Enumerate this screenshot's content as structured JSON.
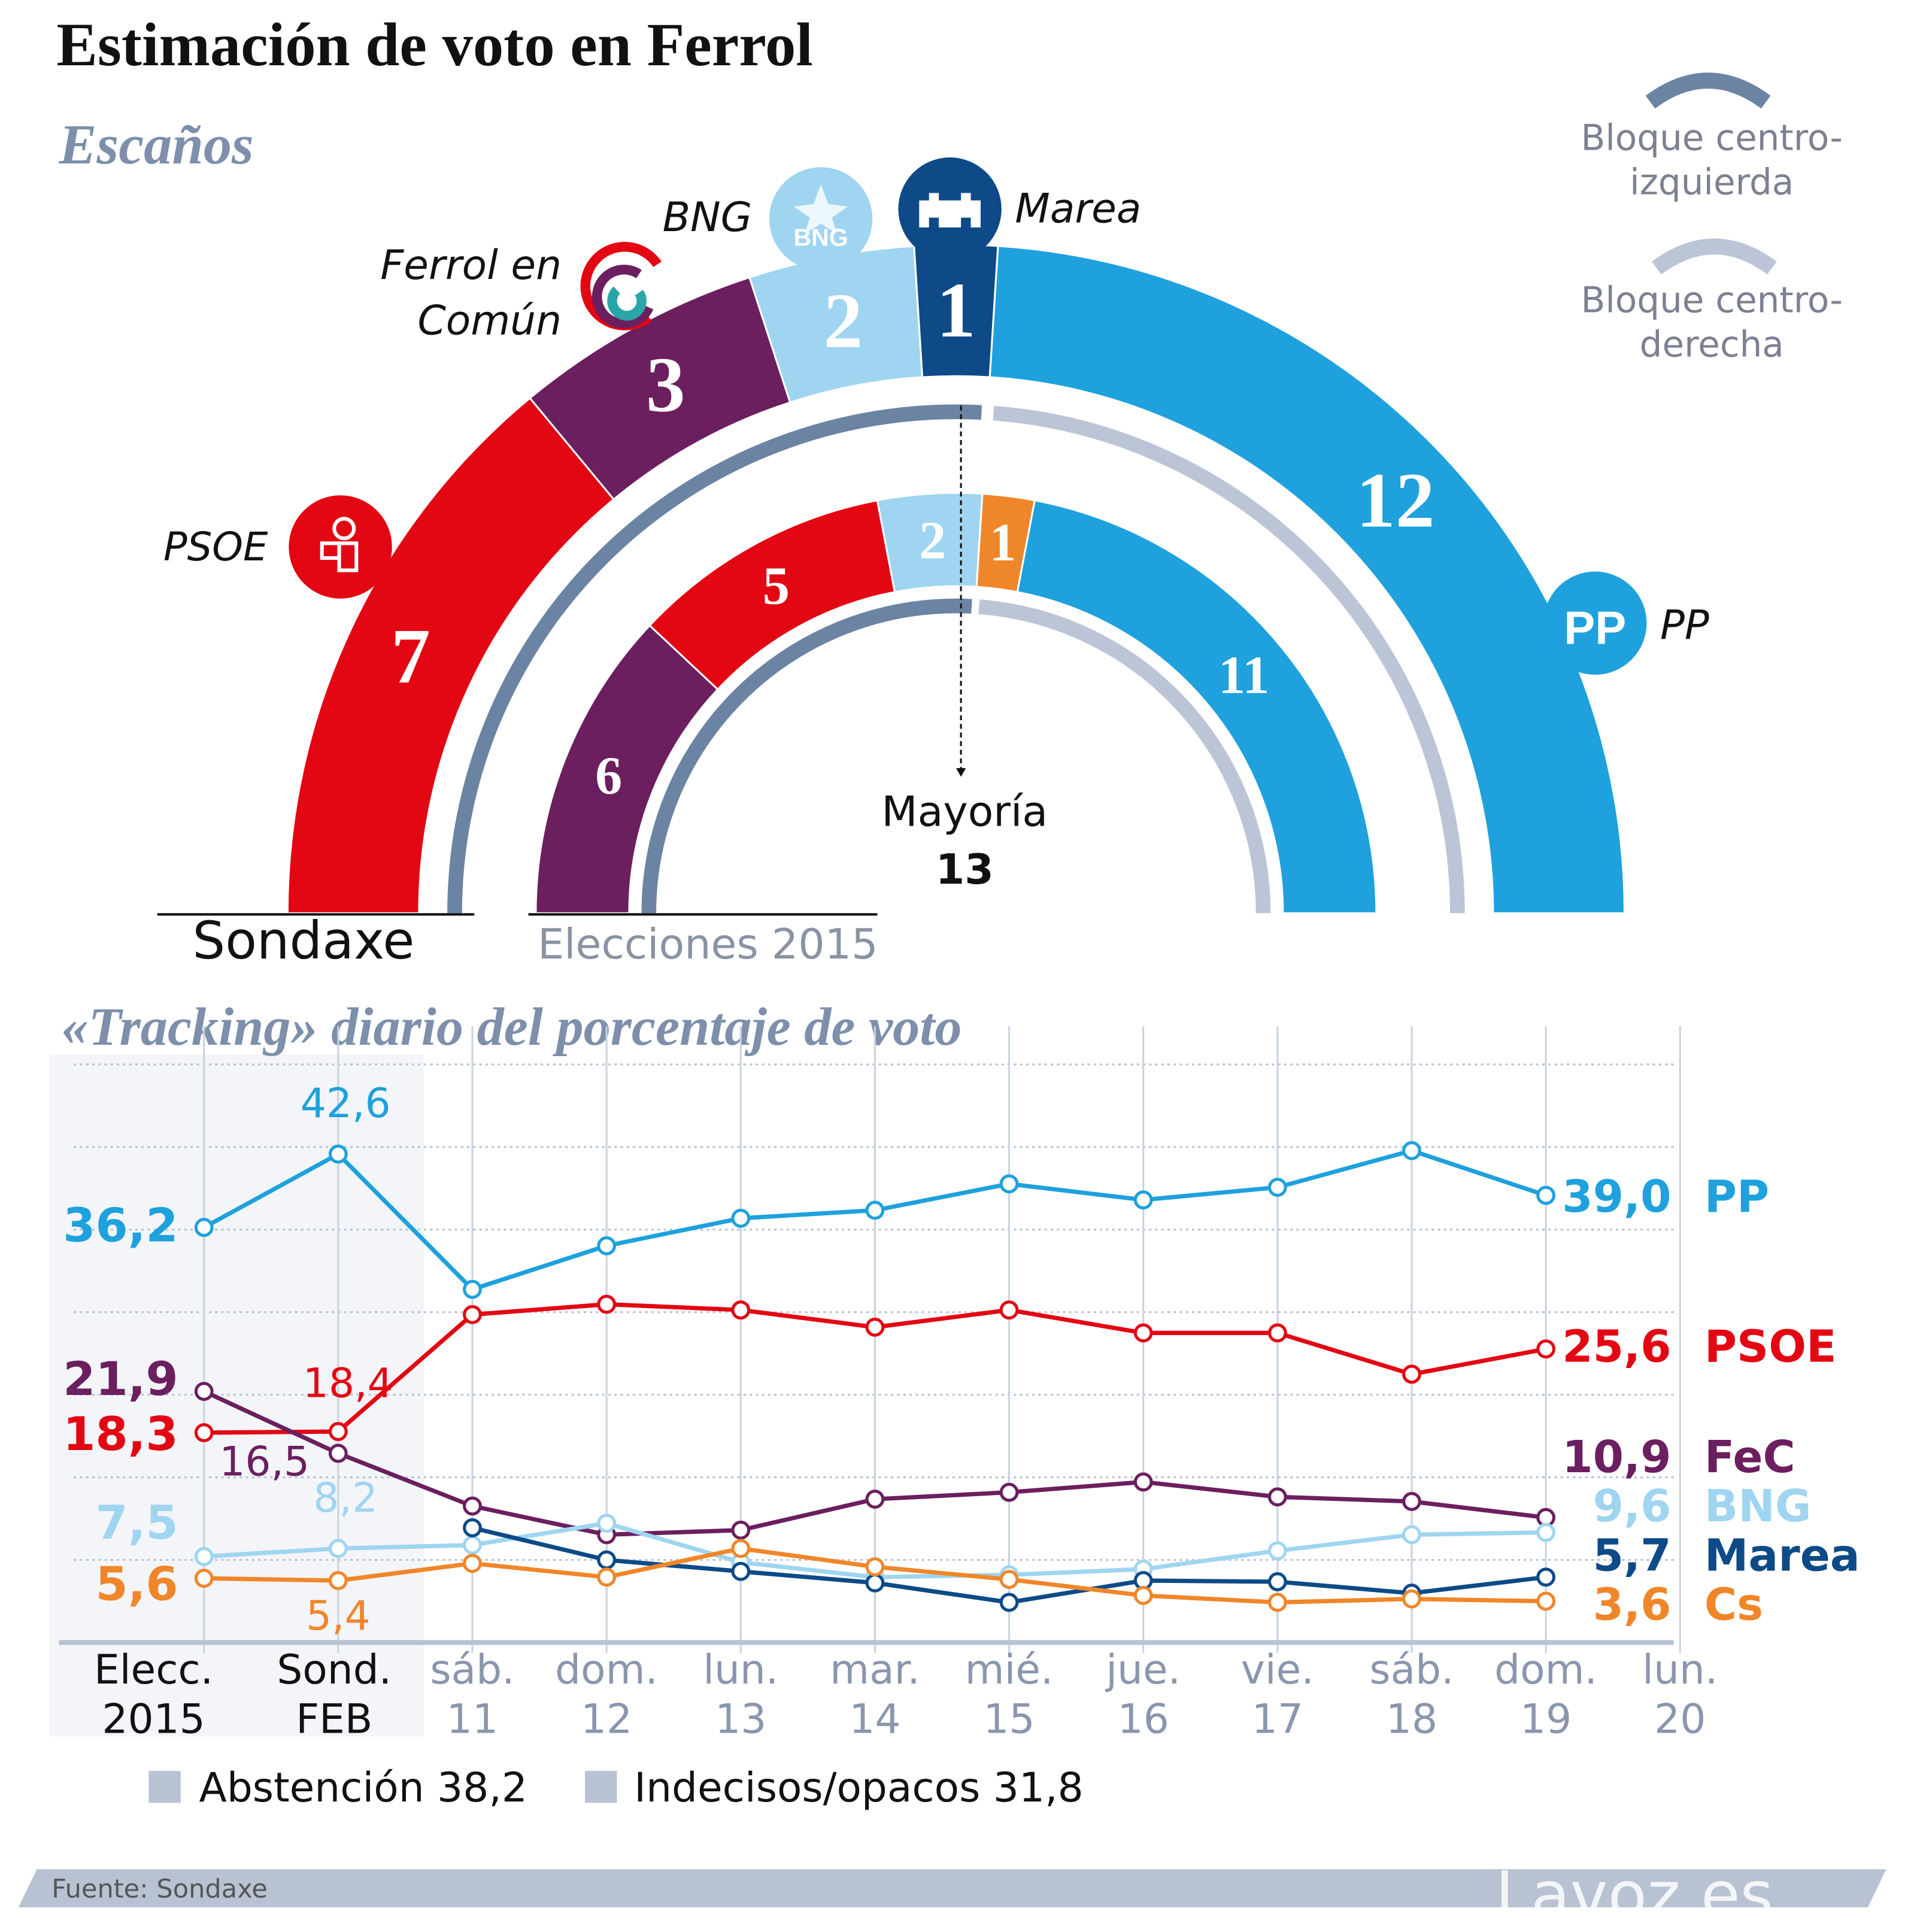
{
  "title": "Estimación de voto en Ferrol",
  "seats_section": {
    "heading": "Escaños",
    "majority_label": "Mayoría",
    "majority_value": "13",
    "legend": [
      {
        "label_lines": [
          "Bloque centro-",
          "izquierda"
        ],
        "color": "#6c84a3"
      },
      {
        "label_lines": [
          "Bloque centro-",
          "derecha"
        ],
        "color": "#bcc5d6"
      }
    ],
    "sondaxe": {
      "label": "Sondaxe",
      "parties": [
        {
          "name": "PSOE",
          "seats": 7,
          "color": "#e30613",
          "label_lines": [
            "PSOE"
          ],
          "logo": "psoe-rose-icon"
        },
        {
          "name": "Ferrol en Común",
          "seats": 3,
          "color": "#6b1f5e",
          "label_lines": [
            "Ferrol en",
            "Común"
          ],
          "logo": "fec-swirl-icon"
        },
        {
          "name": "BNG",
          "seats": 2,
          "color": "#9fd5f0",
          "label_lines": [
            "BNG"
          ],
          "logo": "bng-star-icon",
          "logo_text": "BNG"
        },
        {
          "name": "Marea",
          "seats": 1,
          "color": "#0d4a87",
          "label_lines": [
            "Marea"
          ],
          "logo": "marea-castle-icon"
        },
        {
          "name": "PP",
          "seats": 12,
          "color": "#1ea1dc",
          "label_lines": [
            "PP"
          ],
          "logo": "pp-logo-icon",
          "logo_text": "PP"
        }
      ],
      "blocks": [
        {
          "block": "izquierda",
          "seats": 13
        },
        {
          "block": "derecha",
          "seats": 12
        }
      ]
    },
    "elecciones_2015": {
      "label": "Elecciones 2015",
      "parties": [
        {
          "name": "FeC",
          "seats": 6,
          "color": "#6b1f5e"
        },
        {
          "name": "PSOE",
          "seats": 5,
          "color": "#e30613"
        },
        {
          "name": "BNG",
          "seats": 2,
          "color": "#9fd5f0"
        },
        {
          "name": "Cs",
          "seats": 1,
          "color": "#f0862a"
        },
        {
          "name": "PP",
          "seats": 11,
          "color": "#1ea1dc"
        }
      ],
      "blocks": [
        {
          "block": "izquierda",
          "seats": 13
        },
        {
          "block": "derecha",
          "seats": 12
        }
      ]
    }
  },
  "tracking": {
    "heading": "«Tracking» diario del porcentaje de voto",
    "legend_items": [
      {
        "label": "Abstención",
        "value": "38,2",
        "color": "#b8c2d3"
      },
      {
        "label": "Indecisos/opacos",
        "value": "31,8",
        "color": "#b8c2d3"
      }
    ]
  },
  "chart_data": {
    "type": "line",
    "title": "«Tracking» diario del porcentaje de voto",
    "xlabel": "",
    "ylabel": "",
    "ylim": [
      0,
      50
    ],
    "grid": true,
    "categories": [
      [
        "Elecc.",
        "2015"
      ],
      [
        "Sond.",
        "FEB"
      ],
      [
        "sáb.",
        "11"
      ],
      [
        "dom.",
        "12"
      ],
      [
        "lun.",
        "13"
      ],
      [
        "mar.",
        "14"
      ],
      [
        "mié.",
        "15"
      ],
      [
        "jue.",
        "16"
      ],
      [
        "vie.",
        "17"
      ],
      [
        "sáb.",
        "18"
      ],
      [
        "dom.",
        "19"
      ],
      [
        "lun.",
        "20"
      ]
    ],
    "shaded_categories": [
      "Elecc. 2015",
      "Sond. FEB"
    ],
    "series": [
      {
        "name": "PP",
        "color": "#1ea1dc",
        "values": [
          36.2,
          42.6,
          30.8,
          34.6,
          37.0,
          37.7,
          40.0,
          38.6,
          39.7,
          42.9,
          39.0,
          null
        ],
        "start_label": "36,2",
        "end_label": "39,0",
        "annotations": [
          {
            "point": 1,
            "text": "42,6",
            "place": "above"
          }
        ]
      },
      {
        "name": "PSOE",
        "color": "#e30613",
        "values": [
          18.3,
          18.4,
          28.6,
          29.5,
          29.0,
          27.5,
          29.0,
          27.0,
          27.0,
          23.4,
          25.6,
          null
        ],
        "start_label": "18,3",
        "end_label": "25,6",
        "annotations": [
          {
            "point": 1,
            "text": "18,4",
            "place": "above-right"
          }
        ]
      },
      {
        "name": "FeC",
        "color": "#6b1f5e",
        "values": [
          21.9,
          16.5,
          11.9,
          9.4,
          9.8,
          12.5,
          13.1,
          14.0,
          12.7,
          12.3,
          10.9,
          null
        ],
        "start_label": "21,9",
        "end_label": "10,9",
        "annotations": [
          {
            "point": 1,
            "text": "16,5",
            "place": "below-left"
          }
        ]
      },
      {
        "name": "BNG",
        "color": "#9fd5f0",
        "values": [
          7.5,
          8.2,
          8.5,
          10.4,
          7.0,
          5.7,
          5.9,
          6.4,
          8.0,
          9.4,
          9.6,
          null
        ],
        "start_label": "7,5",
        "end_label": "9,6",
        "annotations": [
          {
            "point": 1,
            "text": "8,2",
            "place": "above"
          }
        ]
      },
      {
        "name": "Marea",
        "color": "#0d4a87",
        "values": [
          null,
          null,
          10.0,
          7.2,
          6.2,
          5.2,
          3.5,
          5.4,
          5.3,
          4.3,
          5.7,
          null
        ],
        "start_label": "",
        "end_label": "5,7",
        "annotations": []
      },
      {
        "name": "Cs",
        "color": "#f0862a",
        "values": [
          5.6,
          5.4,
          6.9,
          5.7,
          8.2,
          6.6,
          5.5,
          4.1,
          3.5,
          3.8,
          3.6,
          null
        ],
        "start_label": "5,6",
        "end_label": "3,6",
        "annotations": [
          {
            "point": 1,
            "text": "5,4",
            "place": "below"
          }
        ]
      }
    ]
  },
  "footer": {
    "source": "Fuente: Sondaxe",
    "brand": "Lavoz.es"
  }
}
